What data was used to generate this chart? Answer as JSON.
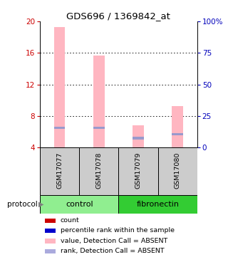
{
  "title": "GDS696 / 1369842_at",
  "samples": [
    "GSM17077",
    "GSM17078",
    "GSM17079",
    "GSM17080"
  ],
  "pink_bar_values": [
    19.3,
    15.7,
    6.8,
    9.3
  ],
  "blue_bar_values": [
    6.5,
    6.5,
    5.2,
    5.7
  ],
  "ylim_left": [
    4,
    20
  ],
  "ylim_right": [
    0,
    100
  ],
  "yticks_left": [
    4,
    8,
    12,
    16,
    20
  ],
  "yticks_right": [
    0,
    25,
    50,
    75,
    100
  ],
  "ytick_labels_right": [
    "0",
    "25",
    "50",
    "75",
    "100%"
  ],
  "bar_width": 0.28,
  "pink_color": "#FFB6C1",
  "blue_color": "#9999CC",
  "bg_color": "#FFFFFF",
  "grid_color": "#000000",
  "label_color_left": "#CC0000",
  "label_color_right": "#0000BB",
  "sample_bg": "#CCCCCC",
  "control_bg": "#90EE90",
  "fibronectin_bg": "#33CC33",
  "legend_items": [
    {
      "color": "#CC0000",
      "label": "count"
    },
    {
      "color": "#0000CC",
      "label": "percentile rank within the sample"
    },
    {
      "color": "#FFB6C1",
      "label": "value, Detection Call = ABSENT"
    },
    {
      "color": "#AAAADD",
      "label": "rank, Detection Call = ABSENT"
    }
  ]
}
